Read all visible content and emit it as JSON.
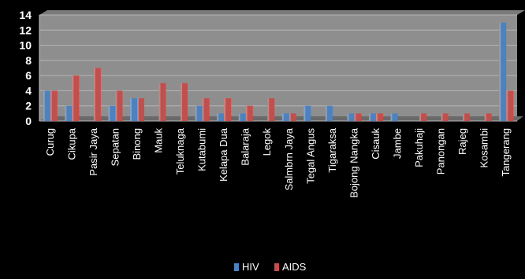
{
  "chart_data": {
    "type": "bar",
    "title": "",
    "xlabel": "",
    "ylabel": "",
    "ylim": [
      0,
      14
    ],
    "yticks": [
      0,
      2,
      4,
      6,
      8,
      10,
      12,
      14
    ],
    "grid": true,
    "legend_position": "bottom",
    "categories": [
      "Curug",
      "Cikupa",
      "Pasir Jaya",
      "Sepatan",
      "Binong",
      "Mauk",
      "Teluknaga",
      "Kutabumi",
      "Kelapa Dua",
      "Balaraja",
      "Legok",
      "Salmbrn Jaya",
      "Tegal Angus",
      "Tigaraksa",
      "Bojong Nangka",
      "Cisauk",
      "Jambe",
      "Pakuhaji",
      "Panongan",
      "Rajeg",
      "Kosambi",
      "Tangerang"
    ],
    "series": [
      {
        "name": "HIV",
        "color": "#4f81bd",
        "values": [
          4,
          2,
          0,
          2,
          3,
          0,
          0,
          2,
          1,
          1,
          0,
          1,
          2,
          2,
          1,
          1,
          1,
          0,
          0,
          0,
          0,
          13
        ]
      },
      {
        "name": "AIDS",
        "color": "#c0504d",
        "values": [
          4,
          6,
          7,
          4,
          3,
          5,
          5,
          3,
          3,
          2,
          3,
          1,
          0,
          0,
          1,
          1,
          0,
          1,
          1,
          1,
          1,
          4
        ]
      }
    ]
  }
}
